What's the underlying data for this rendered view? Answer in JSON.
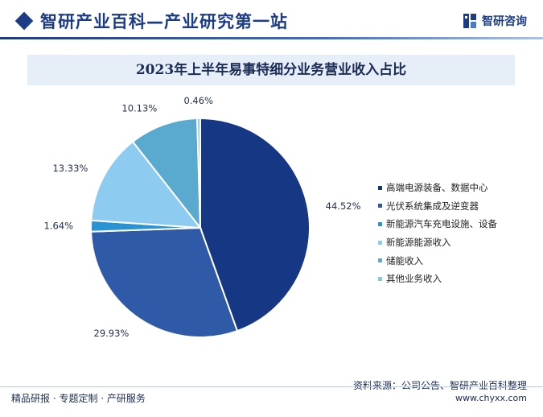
{
  "header": {
    "site_title": "智研产业百科—产业研究第一站",
    "logo_text": "智研咨询",
    "logo_icon": "zhiyan-logo-icon"
  },
  "chart_data": {
    "type": "pie",
    "title": "2023年上半年易事特细分业务营业收入占比",
    "categories": [
      "高端电源装备、数据中心",
      "光伏系统集成及逆变器",
      "新能源汽车充电设施、设备",
      "新能源能源收入",
      "储能收入",
      "其他业务收入"
    ],
    "values": [
      44.52,
      29.93,
      1.64,
      13.33,
      10.13,
      0.46
    ],
    "labels": [
      "44.52%",
      "29.93%",
      "1.64%",
      "13.33%",
      "10.13%",
      "0.46%"
    ],
    "colors": [
      "#163784",
      "#2f5aa8",
      "#2a93d3",
      "#8ecbf1",
      "#5aa9cf",
      "#8fc3d6"
    ],
    "legend_position": "right"
  },
  "footer": {
    "tagline": "精品研报 · 专题定制 · 产研服务",
    "source": "资料来源：公司公告、智研产业百科整理",
    "url": "www.chyxx.com"
  }
}
